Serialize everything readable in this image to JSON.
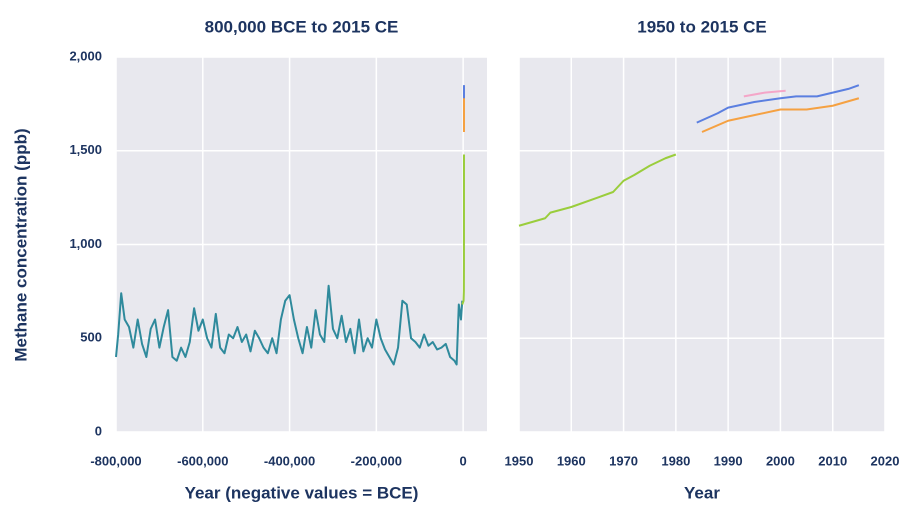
{
  "chart_data": [
    {
      "type": "line",
      "title": "800,000 BCE to 2015 CE",
      "xlabel": "Year (negative values = BCE)",
      "ylabel": "Methane concentration (ppb)",
      "xlim": [
        -800000,
        55000
      ],
      "ylim": [
        0,
        2000
      ],
      "xticks": [
        {
          "value": -800000,
          "label": "-800,000"
        },
        {
          "value": -600000,
          "label": "-600,000"
        },
        {
          "value": -400000,
          "label": "-400,000"
        },
        {
          "value": -200000,
          "label": "-200,000"
        },
        0
      ],
      "yticks": [
        0,
        500,
        {
          "value": 1000,
          "label": "1,000"
        },
        {
          "value": 1500,
          "label": "1,500"
        },
        {
          "value": 2000,
          "label": "2,000"
        }
      ],
      "grid": true,
      "series": [
        {
          "color": "#2f8a9c",
          "x": [
            -800000,
            -795000,
            -788000,
            -780000,
            -770000,
            -760000,
            -750000,
            -740000,
            -730000,
            -720000,
            -710000,
            -700000,
            -690000,
            -680000,
            -670000,
            -660000,
            -650000,
            -640000,
            -630000,
            -620000,
            -610000,
            -600000,
            -590000,
            -580000,
            -570000,
            -560000,
            -550000,
            -540000,
            -530000,
            -520000,
            -510000,
            -500000,
            -490000,
            -480000,
            -470000,
            -460000,
            -450000,
            -440000,
            -430000,
            -420000,
            -410000,
            -400000,
            -390000,
            -380000,
            -370000,
            -360000,
            -350000,
            -340000,
            -330000,
            -320000,
            -310000,
            -300000,
            -290000,
            -280000,
            -270000,
            -260000,
            -250000,
            -240000,
            -230000,
            -220000,
            -210000,
            -200000,
            -190000,
            -180000,
            -170000,
            -160000,
            -150000,
            -140000,
            -130000,
            -120000,
            -110000,
            -100000,
            -90000,
            -80000,
            -70000,
            -60000,
            -50000,
            -40000,
            -30000,
            -20000,
            -15000,
            -10000,
            -5000,
            -2000
          ],
          "values": [
            400,
            520,
            740,
            600,
            560,
            450,
            600,
            470,
            400,
            550,
            600,
            450,
            560,
            650,
            400,
            380,
            450,
            400,
            480,
            660,
            540,
            600,
            500,
            450,
            630,
            450,
            420,
            520,
            500,
            560,
            480,
            520,
            430,
            540,
            500,
            450,
            420,
            500,
            420,
            600,
            700,
            730,
            600,
            500,
            420,
            560,
            450,
            650,
            520,
            480,
            780,
            550,
            500,
            620,
            480,
            550,
            420,
            600,
            430,
            500,
            450,
            600,
            500,
            440,
            400,
            360,
            450,
            700,
            680,
            500,
            480,
            450,
            520,
            460,
            480,
            440,
            450,
            470,
            400,
            380,
            360,
            680,
            600,
            700
          ]
        },
        {
          "color": "#9acd3c",
          "x": [
            -2000,
            1000,
            1700,
            1900,
            1980
          ],
          "values": [
            680,
            700,
            750,
            900,
            1480
          ]
        },
        {
          "color": "#5b7fe0",
          "x": [
            1984,
            2015
          ],
          "values": [
            1650,
            1850
          ]
        },
        {
          "color": "#f5a142",
          "x": [
            1985,
            2015
          ],
          "values": [
            1600,
            1780
          ]
        }
      ]
    },
    {
      "type": "line",
      "title": "1950 to 2015 CE",
      "xlabel": "Year",
      "xlim": [
        1950,
        2020
      ],
      "ylim": [
        0,
        2000
      ],
      "xticks": [
        1950,
        1960,
        1970,
        1980,
        1990,
        2000,
        2010,
        2020
      ],
      "yticks": [
        0,
        500,
        1000,
        1500,
        2000
      ],
      "grid": true,
      "series": [
        {
          "color": "#9acd3c",
          "x": [
            1950,
            1955,
            1956,
            1960,
            1965,
            1968,
            1970,
            1972,
            1975,
            1978,
            1980
          ],
          "values": [
            1100,
            1140,
            1170,
            1200,
            1250,
            1280,
            1340,
            1370,
            1420,
            1460,
            1480
          ]
        },
        {
          "color": "#5b7fe0",
          "x": [
            1984,
            1988,
            1990,
            1995,
            2000,
            2003,
            2007,
            2010,
            2013,
            2015
          ],
          "values": [
            1650,
            1700,
            1730,
            1760,
            1780,
            1790,
            1790,
            1810,
            1830,
            1850
          ]
        },
        {
          "color": "#f5a142",
          "x": [
            1985,
            1990,
            1995,
            2000,
            2005,
            2010,
            2015
          ],
          "values": [
            1600,
            1660,
            1690,
            1720,
            1720,
            1740,
            1780
          ]
        },
        {
          "color": "#f4a6c8",
          "x": [
            1993,
            1997,
            2001
          ],
          "values": [
            1790,
            1810,
            1820
          ]
        }
      ]
    }
  ]
}
